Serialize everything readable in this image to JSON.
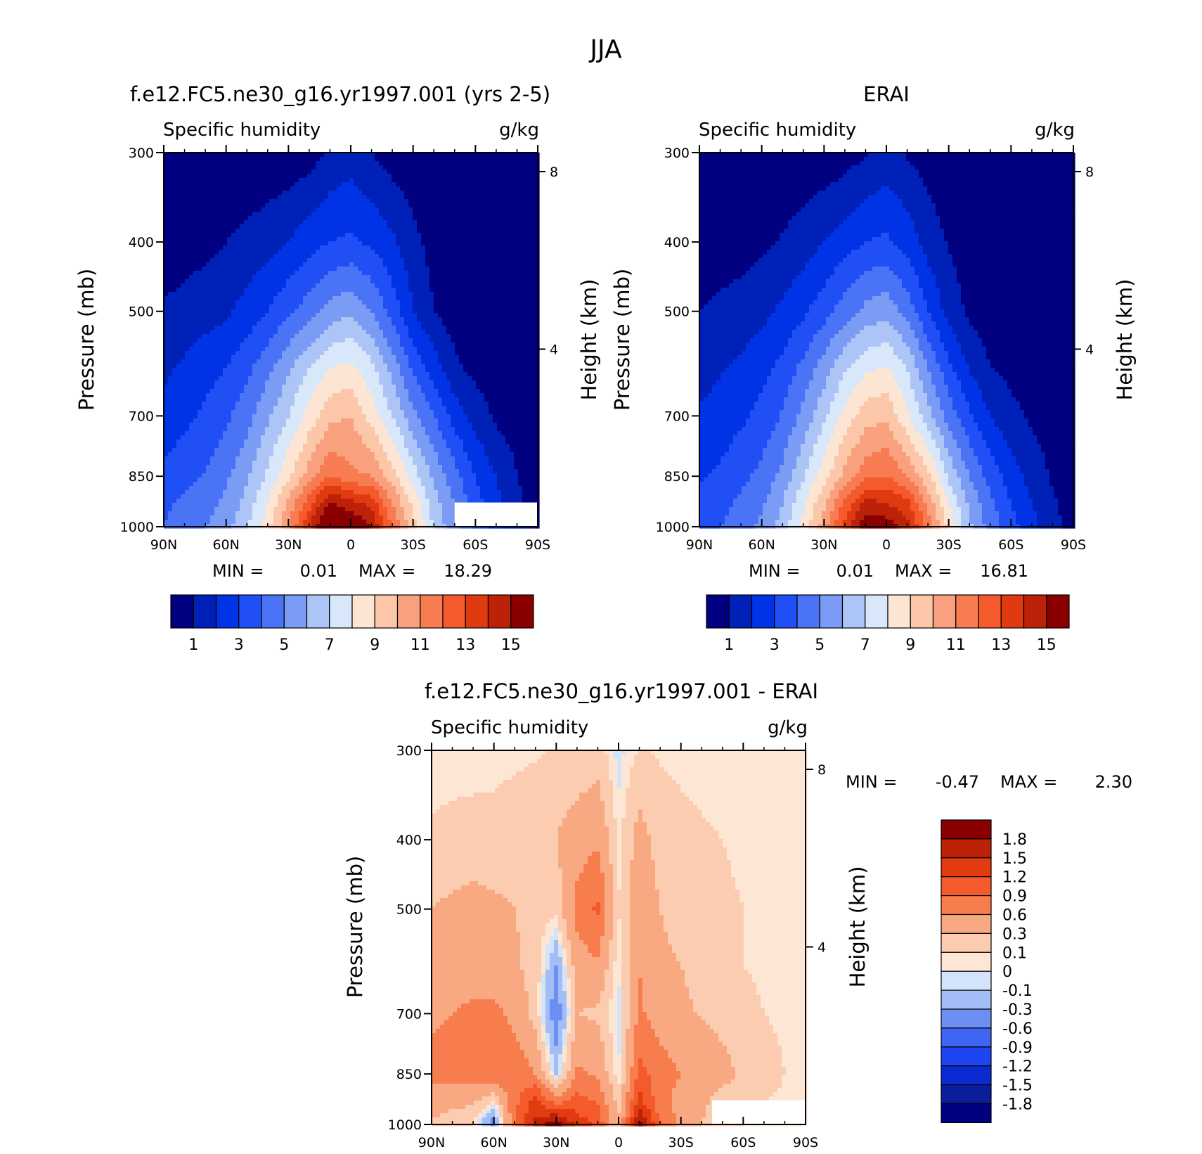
{
  "title": "JJA",
  "palettes": {
    "abs": [
      "#000080",
      "#0021b8",
      "#0033e6",
      "#1f4ff5",
      "#4a73f5",
      "#7b9cf5",
      "#adc4f7",
      "#d8e7fa",
      "#fde5d3",
      "#fcc6a8",
      "#f9a17e",
      "#f77c52",
      "#f55a2d",
      "#e03a11",
      "#bc2208",
      "#8a0000"
    ],
    "diff": [
      "#000080",
      "#0b1c9d",
      "#0a2bd0",
      "#1f45f0",
      "#3f66f2",
      "#6d8ff3",
      "#a3bdf7",
      "#d3e4fa",
      "#fde6d4",
      "#fcccb0",
      "#f9a981",
      "#f77d4f",
      "#f55a2b",
      "#e23b11",
      "#bd2207",
      "#8a0000"
    ]
  },
  "chart_data": [
    {
      "type": "contour",
      "title": "f.e12.FC5.ne30_g16.yr1997.001 (yrs 2-5)",
      "variable": "Specific humidity",
      "units": "g/kg",
      "xlabel": "",
      "ylabel": "Pressure (mb)",
      "ylabel_right": "Height (km)",
      "x_ticks": [
        "90N",
        "60N",
        "30N",
        "0",
        "30S",
        "60S",
        "90S"
      ],
      "y_ticks": [
        "300",
        "400",
        "500",
        "700",
        "850",
        "1000"
      ],
      "y_right_ticks": [
        "8",
        "4"
      ],
      "min_label": "MIN =",
      "min_value": "0.01",
      "max_label": "MAX =",
      "max_value": "18.29",
      "colorbar_levels": [
        "1",
        "3",
        "5",
        "7",
        "9",
        "11",
        "13",
        "15"
      ],
      "levels": [
        1,
        2,
        3,
        4,
        5,
        6,
        7,
        8,
        9,
        10,
        11,
        12,
        13,
        14,
        15
      ],
      "x": [
        -90,
        -80,
        -70,
        -60,
        -50,
        -40,
        -30,
        -20,
        -10,
        0,
        10,
        20,
        30,
        40,
        50,
        60,
        70,
        80,
        90
      ],
      "p": [
        300,
        400,
        500,
        600,
        700,
        850,
        925,
        1000
      ],
      "values": [
        [
          0.1,
          0.1,
          0.1,
          0.1,
          0.1,
          0.2,
          0.3,
          0.5,
          1.2,
          1.5,
          1.0,
          0.5,
          0.3,
          0.2,
          0.1,
          0.1,
          0.05,
          0.03,
          0.02
        ],
        [
          0.5,
          0.6,
          0.7,
          1.0,
          1.3,
          1.6,
          2.0,
          2.6,
          3.0,
          3.2,
          2.8,
          2.2,
          1.3,
          0.6,
          0.3,
          0.2,
          0.1,
          0.1,
          0.05
        ],
        [
          1.1,
          1.3,
          1.6,
          1.8,
          2.4,
          3.0,
          3.8,
          4.5,
          5.4,
          5.8,
          5.0,
          3.6,
          2.0,
          1.0,
          0.5,
          0.3,
          0.2,
          0.1,
          0.05
        ],
        [
          1.8,
          2.2,
          2.6,
          3.0,
          3.7,
          4.7,
          5.8,
          7.0,
          8.0,
          8.3,
          7.3,
          5.6,
          3.8,
          2.5,
          1.2,
          0.7,
          0.4,
          0.3,
          0.2
        ],
        [
          2.3,
          2.7,
          3.2,
          3.8,
          4.6,
          5.8,
          7.0,
          8.4,
          9.7,
          10.0,
          8.6,
          7.0,
          5.3,
          4.0,
          2.6,
          1.6,
          0.8,
          0.5,
          0.3
        ],
        [
          3.3,
          3.7,
          4.1,
          4.8,
          5.8,
          7.2,
          8.8,
          10.5,
          12.0,
          11.2,
          11.0,
          9.5,
          7.5,
          5.8,
          4.4,
          3.0,
          2.0,
          1.0,
          0.5
        ],
        [
          3.8,
          4.2,
          4.6,
          5.2,
          6.4,
          8.0,
          10.2,
          12.6,
          15.1,
          14.3,
          13.6,
          11.0,
          8.7,
          6.5,
          4.9,
          3.4,
          2.3,
          1.2,
          0.6
        ],
        [
          4.0,
          4.5,
          5.0,
          5.6,
          6.8,
          8.6,
          11.0,
          14.0,
          16.6,
          16.2,
          15.0,
          11.8,
          9.4,
          6.8,
          5.3,
          3.8,
          2.6,
          1.5,
          0.9
        ]
      ],
      "blank_region": {
        "x_from": 50,
        "x_to": 90,
        "p_from": 925,
        "p_to": 1000
      }
    },
    {
      "type": "contour",
      "title": "ERAI",
      "variable": "Specific humidity",
      "units": "g/kg",
      "xlabel": "",
      "ylabel": "Pressure (mb)",
      "ylabel_right": "Height (km)",
      "x_ticks": [
        "90N",
        "60N",
        "30N",
        "0",
        "30S",
        "60S",
        "90S"
      ],
      "y_ticks": [
        "300",
        "400",
        "500",
        "700",
        "850",
        "1000"
      ],
      "y_right_ticks": [
        "8",
        "4"
      ],
      "min_label": "MIN =",
      "min_value": "0.01",
      "max_label": "MAX =",
      "max_value": "16.81",
      "colorbar_levels": [
        "1",
        "3",
        "5",
        "7",
        "9",
        "11",
        "13",
        "15"
      ],
      "levels": [
        1,
        2,
        3,
        4,
        5,
        6,
        7,
        8,
        9,
        10,
        11,
        12,
        13,
        14,
        15
      ],
      "x": [
        -90,
        -80,
        -70,
        -60,
        -50,
        -40,
        -30,
        -20,
        -10,
        0,
        10,
        20,
        30,
        40,
        50,
        60,
        70,
        80,
        90
      ],
      "p": [
        300,
        400,
        500,
        600,
        700,
        850,
        925,
        1000
      ],
      "values": [
        [
          0.1,
          0.1,
          0.1,
          0.1,
          0.1,
          0.2,
          0.3,
          0.5,
          0.9,
          1.3,
          0.9,
          0.5,
          0.3,
          0.2,
          0.1,
          0.05,
          0.03,
          0.02,
          0.01
        ],
        [
          0.4,
          0.5,
          0.6,
          0.8,
          1.1,
          1.5,
          2.0,
          2.5,
          3.0,
          3.2,
          2.6,
          1.6,
          0.9,
          0.5,
          0.3,
          0.2,
          0.1,
          0.05,
          0.03
        ],
        [
          1.0,
          1.2,
          1.4,
          1.7,
          2.2,
          2.8,
          3.6,
          4.5,
          5.3,
          5.7,
          4.6,
          3.0,
          1.6,
          0.8,
          0.4,
          0.3,
          0.2,
          0.1,
          0.05
        ],
        [
          1.6,
          1.9,
          2.2,
          2.7,
          3.3,
          4.3,
          5.5,
          6.8,
          7.8,
          8.1,
          7.0,
          5.0,
          3.3,
          1.9,
          1.0,
          0.7,
          0.5,
          0.3,
          0.2
        ],
        [
          2.1,
          2.4,
          2.8,
          3.3,
          4.1,
          5.3,
          6.8,
          8.4,
          9.6,
          9.8,
          8.2,
          6.4,
          4.6,
          3.2,
          2.0,
          1.3,
          0.8,
          0.5,
          0.3
        ],
        [
          2.9,
          3.2,
          3.7,
          4.3,
          5.3,
          6.9,
          8.6,
          10.3,
          11.7,
          12.0,
          11.0,
          9.3,
          6.8,
          5.0,
          3.6,
          2.5,
          1.6,
          0.9,
          0.5
        ],
        [
          3.3,
          3.7,
          4.2,
          4.8,
          6.0,
          7.8,
          9.8,
          12.2,
          14.3,
          14.0,
          13.3,
          10.7,
          8.0,
          5.8,
          4.2,
          3.0,
          2.0,
          1.1,
          0.6
        ],
        [
          3.5,
          4.0,
          4.5,
          5.2,
          6.4,
          8.3,
          10.6,
          13.3,
          15.8,
          15.6,
          14.4,
          11.6,
          8.8,
          6.2,
          4.6,
          3.4,
          2.3,
          1.3,
          0.7
        ]
      ]
    },
    {
      "type": "contour",
      "title": "f.e12.FC5.ne30_g16.yr1997.001 - ERAI",
      "variable": "Specific humidity",
      "units": "g/kg",
      "xlabel": "",
      "ylabel": "Pressure (mb)",
      "ylabel_right": "Height (km)",
      "x_ticks": [
        "90N",
        "60N",
        "30N",
        "0",
        "30S",
        "60S",
        "90S"
      ],
      "y_ticks": [
        "300",
        "400",
        "500",
        "700",
        "850",
        "1000"
      ],
      "y_right_ticks": [
        "8",
        "4"
      ],
      "min_label": "MIN =",
      "min_value": "-0.47",
      "max_label": "MAX =",
      "max_value": "2.30",
      "colorbar_levels": [
        "1.8",
        "1.5",
        "1.2",
        "0.9",
        "0.6",
        "0.3",
        "0.1",
        "0",
        "-0.1",
        "-0.3",
        "-0.6",
        "-0.9",
        "-1.2",
        "-1.5",
        "-1.8"
      ],
      "levels": [
        -1.8,
        -1.5,
        -1.2,
        -0.9,
        -0.6,
        -0.3,
        -0.1,
        0,
        0.1,
        0.3,
        0.6,
        0.9,
        1.2,
        1.5,
        1.8
      ],
      "x": [
        -90,
        -80,
        -70,
        -60,
        -50,
        -40,
        -30,
        -20,
        -10,
        0,
        10,
        20,
        30,
        40,
        50,
        60,
        70,
        80,
        90
      ],
      "p": [
        300,
        400,
        500,
        600,
        700,
        850,
        925,
        1000
      ],
      "values": [
        [
          0.05,
          0.05,
          0.05,
          0.05,
          0.06,
          0.08,
          0.12,
          0.12,
          0.18,
          -0.05,
          0.12,
          0.08,
          0.06,
          0.05,
          0.04,
          0.03,
          0.02,
          0.02,
          0.02
        ],
        [
          0.12,
          0.14,
          0.15,
          0.16,
          0.2,
          0.25,
          0.3,
          0.45,
          0.55,
          0.05,
          0.4,
          0.2,
          0.15,
          0.12,
          0.1,
          0.08,
          0.06,
          0.05,
          0.04
        ],
        [
          0.3,
          0.35,
          0.4,
          0.35,
          0.3,
          0.2,
          0.15,
          0.7,
          0.95,
          0.1,
          0.5,
          0.3,
          0.2,
          0.15,
          0.12,
          0.1,
          0.08,
          0.06,
          0.05
        ],
        [
          0.4,
          0.45,
          0.5,
          0.4,
          0.35,
          0.2,
          -0.3,
          0.45,
          0.55,
          0.0,
          0.6,
          0.35,
          0.3,
          0.22,
          0.15,
          0.1,
          0.08,
          0.06,
          0.05
        ],
        [
          0.55,
          0.6,
          0.65,
          0.7,
          0.5,
          0.2,
          -0.5,
          0.3,
          0.25,
          -0.05,
          0.65,
          0.45,
          0.35,
          0.28,
          0.2,
          0.14,
          0.1,
          0.08,
          0.06
        ],
        [
          0.7,
          0.75,
          0.8,
          0.85,
          0.8,
          0.6,
          -0.15,
          0.65,
          0.55,
          -0.02,
          1.0,
          0.75,
          0.6,
          0.55,
          0.4,
          0.25,
          0.15,
          0.1,
          0.06
        ],
        [
          0.45,
          0.4,
          0.35,
          0.1,
          0.8,
          1.3,
          0.7,
          1.0,
          0.85,
          0.2,
          1.3,
          0.7,
          0.5,
          0.35,
          0.2,
          0.12,
          0.1,
          0.08,
          0.06
        ],
        [
          0.25,
          0.15,
          0.1,
          -0.45,
          0.9,
          1.6,
          2.0,
          1.4,
          1.1,
          0.3,
          1.9,
          0.9,
          0.5,
          0.3,
          0.15,
          0.1,
          0.08,
          0.06,
          0.05
        ]
      ],
      "blank_region": {
        "x_from": 45,
        "x_to": 90,
        "p_from": 925,
        "p_to": 1000
      }
    }
  ]
}
